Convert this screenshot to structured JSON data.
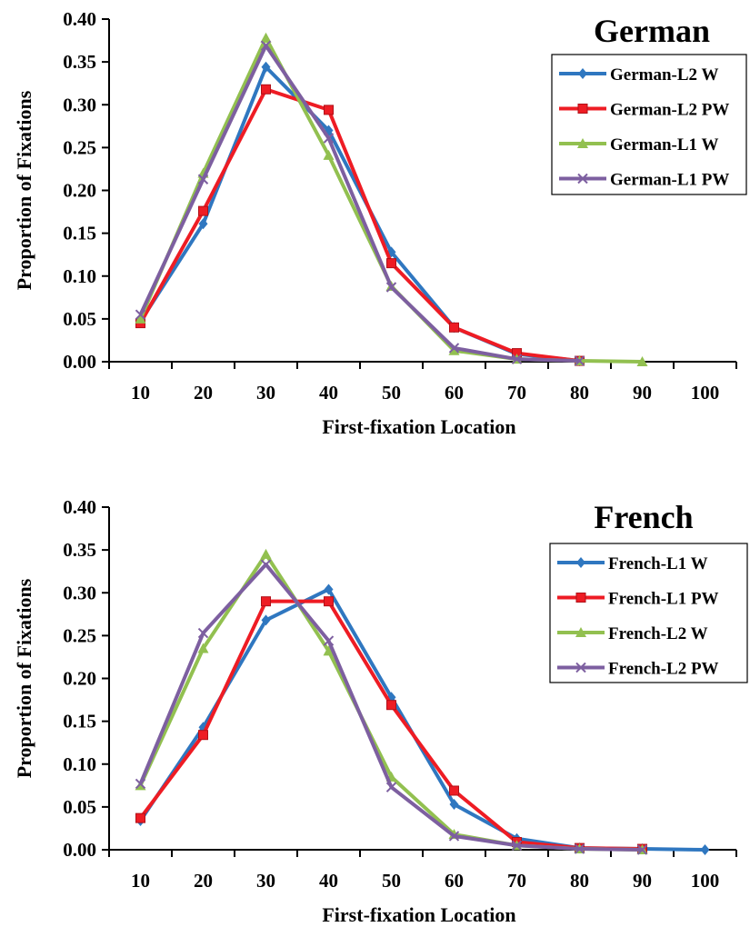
{
  "chart_data": [
    {
      "type": "line",
      "title": "German",
      "xlabel": "First-fixation Location",
      "ylabel": "Proportion of Fixations",
      "categories": [
        "10",
        "20",
        "30",
        "40",
        "50",
        "60",
        "70",
        "80",
        "90",
        "100"
      ],
      "ylim": [
        0,
        0.4
      ],
      "yticks": [
        "0.00",
        "0.05",
        "0.10",
        "0.15",
        "0.20",
        "0.25",
        "0.30",
        "0.35",
        "0.40"
      ],
      "grid": false,
      "legend_position": "top-right",
      "series": [
        {
          "name": "German-L2 W",
          "color": "#2f77c0",
          "marker": "diamond",
          "values": [
            0.047,
            0.161,
            0.344,
            0.27,
            0.128,
            0.04,
            0.009,
            0.001,
            null,
            null
          ]
        },
        {
          "name": "German-L2 PW",
          "color": "#ee1c24",
          "marker": "square",
          "values": [
            0.045,
            0.176,
            0.318,
            0.294,
            0.115,
            0.04,
            0.01,
            0.001,
            null,
            null
          ]
        },
        {
          "name": "German-L1 W",
          "color": "#92c050",
          "marker": "triangle",
          "values": [
            0.05,
            0.22,
            0.378,
            0.241,
            0.088,
            0.013,
            0.003,
            0.001,
            0.0,
            null
          ]
        },
        {
          "name": "German-L1 PW",
          "color": "#7d5fa0",
          "marker": "x",
          "values": [
            0.055,
            0.213,
            0.369,
            0.261,
            0.087,
            0.016,
            0.003,
            0.001,
            null,
            null
          ]
        }
      ]
    },
    {
      "type": "line",
      "title": "French",
      "xlabel": "First-fixation Location",
      "ylabel": "Proportion of Fixations",
      "categories": [
        "10",
        "20",
        "30",
        "40",
        "50",
        "60",
        "70",
        "80",
        "90",
        "100"
      ],
      "ylim": [
        0,
        0.4
      ],
      "yticks": [
        "0.00",
        "0.05",
        "0.10",
        "0.15",
        "0.20",
        "0.25",
        "0.30",
        "0.35",
        "0.40"
      ],
      "grid": false,
      "legend_position": "top-right",
      "series": [
        {
          "name": "French-L1 W",
          "color": "#2f77c0",
          "marker": "diamond",
          "values": [
            0.034,
            0.143,
            0.268,
            0.304,
            0.178,
            0.053,
            0.013,
            0.002,
            0.001,
            0.0
          ]
        },
        {
          "name": "French-L1 PW",
          "color": "#ee1c24",
          "marker": "square",
          "values": [
            0.037,
            0.134,
            0.29,
            0.29,
            0.169,
            0.069,
            0.009,
            0.002,
            0.001,
            null
          ]
        },
        {
          "name": "French-L2 W",
          "color": "#92c050",
          "marker": "triangle",
          "values": [
            0.075,
            0.235,
            0.345,
            0.232,
            0.085,
            0.018,
            0.005,
            0.001,
            0.0,
            null
          ]
        },
        {
          "name": "French-L2 PW",
          "color": "#7d5fa0",
          "marker": "x",
          "values": [
            0.077,
            0.253,
            0.333,
            0.244,
            0.073,
            0.016,
            0.005,
            0.001,
            0.0,
            null
          ]
        }
      ]
    }
  ]
}
